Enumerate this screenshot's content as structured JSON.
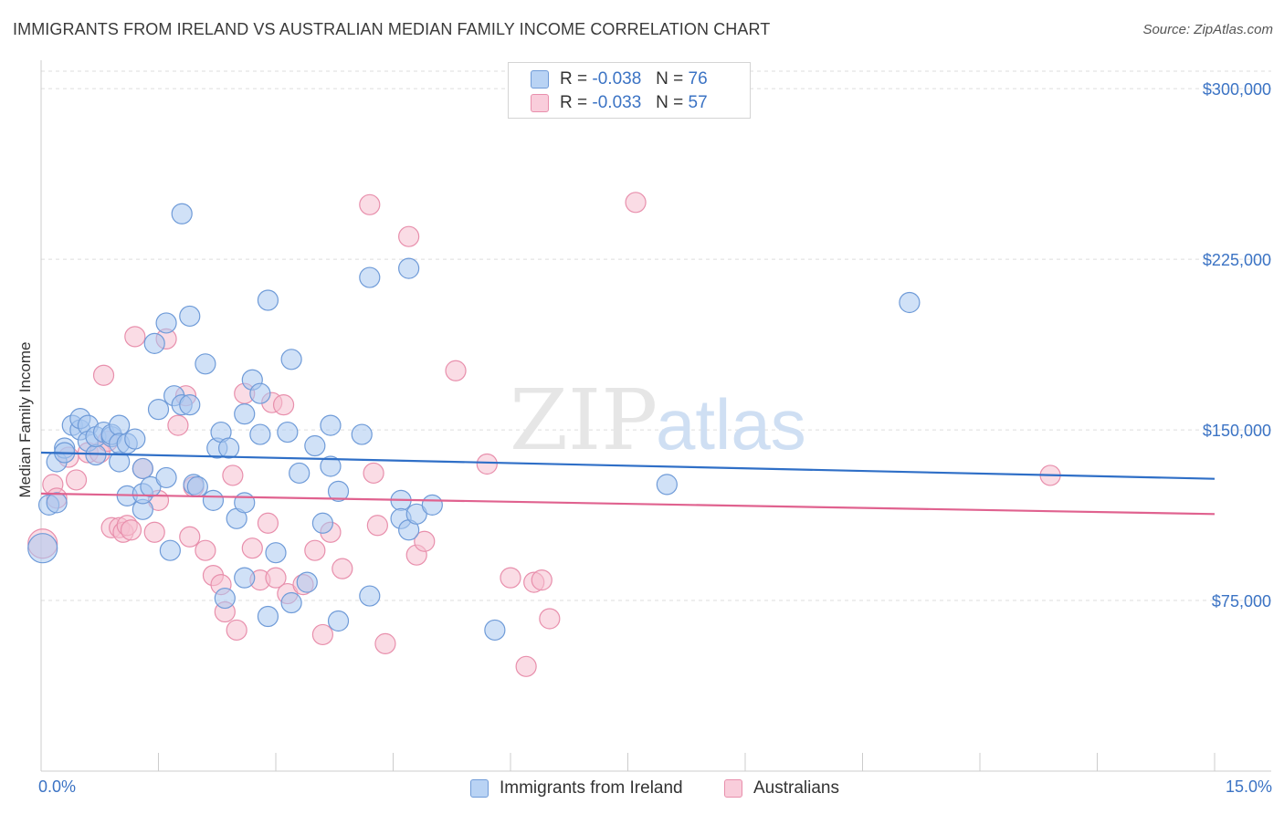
{
  "header": {
    "title": "IMMIGRANTS FROM IRELAND VS AUSTRALIAN MEDIAN FAMILY INCOME CORRELATION CHART",
    "source": "Source: ZipAtlas.com"
  },
  "watermark": {
    "part1": "ZIP",
    "part2": "atlas"
  },
  "legend": {
    "r_label": "R =",
    "n_label": "N =",
    "rows": [
      {
        "r": "-0.038",
        "n": "76"
      },
      {
        "r": "-0.033",
        "n": "57"
      }
    ]
  },
  "chart_data": {
    "type": "scatter",
    "title": "IMMIGRANTS FROM IRELAND VS AUSTRALIAN MEDIAN FAMILY INCOME CORRELATION CHART",
    "xlabel": "",
    "ylabel": "Median Family Income",
    "xlim": [
      0,
      15
    ],
    "ylim": [
      0,
      312500
    ],
    "x_tick_labels": [
      "0.0%",
      "15.0%"
    ],
    "y_ticks": [
      75000,
      150000,
      225000,
      300000
    ],
    "y_tick_labels": [
      "$75,000",
      "$150,000",
      "$225,000",
      "$300,000"
    ],
    "grid": true,
    "legend_position": "top-center",
    "colors": {
      "series1_fill": "#a9c8f0",
      "series1_stroke": "#6f9bd8",
      "series1_line": "#2f6fc7",
      "series2_fill": "#f6bfd0",
      "series2_stroke": "#e88fac",
      "series2_line": "#e0628f",
      "grid": "#dddddd",
      "axis_label": "#3b73c4"
    },
    "series": [
      {
        "name": "Immigrants from Ireland",
        "r": -0.038,
        "n": 76,
        "trend": {
          "x": [
            0,
            15
          ],
          "y": [
            140000,
            128500
          ]
        },
        "points": [
          [
            0.1,
            117000
          ],
          [
            0.2,
            118000
          ],
          [
            0.2,
            136000
          ],
          [
            0.3,
            142000
          ],
          [
            0.3,
            140000
          ],
          [
            0.4,
            152000
          ],
          [
            0.5,
            150000
          ],
          [
            0.5,
            155000
          ],
          [
            0.6,
            152000
          ],
          [
            0.6,
            145000
          ],
          [
            0.7,
            139000
          ],
          [
            0.7,
            147000
          ],
          [
            0.8,
            149000
          ],
          [
            0.9,
            147000
          ],
          [
            0.9,
            148000
          ],
          [
            1.0,
            152000
          ],
          [
            1.0,
            136000
          ],
          [
            1.0,
            144000
          ],
          [
            1.1,
            144000
          ],
          [
            1.1,
            121000
          ],
          [
            1.2,
            146000
          ],
          [
            1.3,
            115000
          ],
          [
            1.3,
            122000
          ],
          [
            1.3,
            133000
          ],
          [
            1.4,
            125000
          ],
          [
            1.45,
            188000
          ],
          [
            1.5,
            159000
          ],
          [
            1.6,
            197000
          ],
          [
            1.6,
            129000
          ],
          [
            1.65,
            97000
          ],
          [
            1.7,
            165000
          ],
          [
            1.8,
            245000
          ],
          [
            1.8,
            161000
          ],
          [
            1.9,
            161000
          ],
          [
            1.9,
            200000
          ],
          [
            1.95,
            126000
          ],
          [
            2.0,
            125000
          ],
          [
            2.1,
            179000
          ],
          [
            2.2,
            119000
          ],
          [
            2.25,
            142000
          ],
          [
            2.3,
            149000
          ],
          [
            2.35,
            76000
          ],
          [
            2.4,
            142000
          ],
          [
            2.5,
            111000
          ],
          [
            2.6,
            85000
          ],
          [
            2.6,
            118000
          ],
          [
            2.6,
            157000
          ],
          [
            2.7,
            172000
          ],
          [
            2.8,
            148000
          ],
          [
            2.8,
            166000
          ],
          [
            2.9,
            207000
          ],
          [
            2.9,
            68000
          ],
          [
            3.0,
            96000
          ],
          [
            3.15,
            149000
          ],
          [
            3.2,
            181000
          ],
          [
            3.3,
            131000
          ],
          [
            3.2,
            74000
          ],
          [
            3.4,
            83000
          ],
          [
            3.5,
            143000
          ],
          [
            3.6,
            109000
          ],
          [
            3.7,
            134000
          ],
          [
            3.7,
            152000
          ],
          [
            3.8,
            123000
          ],
          [
            3.8,
            66000
          ],
          [
            4.1,
            148000
          ],
          [
            4.2,
            217000
          ],
          [
            4.2,
            77000
          ],
          [
            4.6,
            119000
          ],
          [
            4.6,
            111000
          ],
          [
            4.7,
            106000
          ],
          [
            4.7,
            221000
          ],
          [
            4.8,
            113000
          ],
          [
            5.0,
            117000
          ],
          [
            5.8,
            62000
          ],
          [
            8.0,
            126000
          ],
          [
            11.1,
            206000
          ],
          [
            0.02,
            98000
          ]
        ],
        "marker_size": [
          11,
          11,
          11,
          11,
          11,
          11,
          11,
          11,
          11,
          11,
          11,
          11,
          11,
          11,
          11,
          11,
          11,
          11,
          11,
          11,
          11,
          11,
          11,
          11,
          11,
          11,
          11,
          11,
          11,
          11,
          11,
          11,
          11,
          11,
          11,
          11,
          11,
          11,
          11,
          11,
          11,
          11,
          11,
          11,
          11,
          11,
          11,
          11,
          11,
          11,
          11,
          11,
          11,
          11,
          11,
          11,
          11,
          11,
          11,
          11,
          11,
          11,
          11,
          11,
          11,
          11,
          11,
          11,
          11,
          11,
          11,
          11,
          11,
          11,
          11,
          11,
          16
        ]
      },
      {
        "name": "Australians",
        "r": -0.033,
        "n": 57,
        "trend": {
          "x": [
            0,
            15
          ],
          "y": [
            122000,
            113000
          ]
        },
        "points": [
          [
            0.02,
            100000
          ],
          [
            0.15,
            126000
          ],
          [
            0.2,
            120000
          ],
          [
            0.35,
            138000
          ],
          [
            0.45,
            128000
          ],
          [
            0.6,
            140000
          ],
          [
            0.75,
            140000
          ],
          [
            0.8,
            174000
          ],
          [
            0.85,
            145000
          ],
          [
            0.9,
            107000
          ],
          [
            1.0,
            107000
          ],
          [
            1.05,
            105000
          ],
          [
            1.1,
            108000
          ],
          [
            1.15,
            106000
          ],
          [
            1.2,
            191000
          ],
          [
            1.3,
            133000
          ],
          [
            1.45,
            105000
          ],
          [
            1.5,
            119000
          ],
          [
            1.6,
            190000
          ],
          [
            1.75,
            152000
          ],
          [
            1.85,
            165000
          ],
          [
            1.9,
            103000
          ],
          [
            1.95,
            125000
          ],
          [
            2.1,
            97000
          ],
          [
            2.2,
            86000
          ],
          [
            2.3,
            82000
          ],
          [
            2.35,
            70000
          ],
          [
            2.45,
            130000
          ],
          [
            2.5,
            62000
          ],
          [
            2.6,
            166000
          ],
          [
            2.7,
            98000
          ],
          [
            2.8,
            84000
          ],
          [
            2.9,
            109000
          ],
          [
            2.95,
            162000
          ],
          [
            3.0,
            85000
          ],
          [
            3.1,
            161000
          ],
          [
            3.15,
            78000
          ],
          [
            3.35,
            82000
          ],
          [
            3.5,
            97000
          ],
          [
            3.6,
            60000
          ],
          [
            3.7,
            105000
          ],
          [
            3.85,
            89000
          ],
          [
            4.2,
            249000
          ],
          [
            4.25,
            131000
          ],
          [
            4.3,
            108000
          ],
          [
            4.4,
            56000
          ],
          [
            4.7,
            235000
          ],
          [
            4.8,
            95000
          ],
          [
            4.9,
            101000
          ],
          [
            5.3,
            176000
          ],
          [
            5.7,
            135000
          ],
          [
            6.0,
            85000
          ],
          [
            6.2,
            46000
          ],
          [
            6.3,
            83000
          ],
          [
            6.4,
            84000
          ],
          [
            6.5,
            67000
          ],
          [
            7.6,
            250000
          ],
          [
            12.9,
            130000
          ]
        ],
        "marker_size": [
          16,
          11,
          11,
          11,
          11,
          11,
          11,
          11,
          11,
          11,
          11,
          11,
          11,
          11,
          11,
          11,
          11,
          11,
          11,
          11,
          11,
          11,
          11,
          11,
          11,
          11,
          11,
          11,
          11,
          11,
          11,
          11,
          11,
          11,
          11,
          11,
          11,
          11,
          11,
          11,
          11,
          11,
          11,
          11,
          11,
          11,
          11,
          11,
          11,
          11,
          11,
          11,
          11,
          11,
          11,
          11,
          11,
          11
        ]
      }
    ]
  }
}
